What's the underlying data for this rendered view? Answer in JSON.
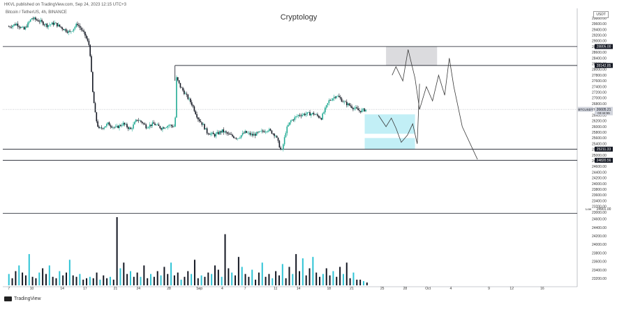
{
  "header": {
    "published_by": "HKVL published on TradingView.com, Sep 24, 2023 12:15 UTC+3",
    "symbol_line": "Bitcoin / TetherUS, 4h, BINANCE",
    "currency": "USDT"
  },
  "chart_data": {
    "type": "candlestick",
    "title": "Cryptology",
    "symbol": "BTCUSDT",
    "last_price": "26605.21",
    "last_price_sub": "03:44:55",
    "y_axis": {
      "ylim": [
        23000,
        29900
      ],
      "tick_labels": [
        "23000.00",
        "23200.00",
        "23400.00",
        "23600.00",
        "23800.00",
        "24000.00",
        "24200.00",
        "24400.00",
        "24600.00",
        "24800.00",
        "25000.00",
        "25200.00",
        "25400.00",
        "25600.00",
        "25800.00",
        "26000.00",
        "26200.00",
        "26400.00",
        "26600.00",
        "26800.00",
        "27000.00",
        "27200.00",
        "27400.00",
        "27600.00",
        "27800.00",
        "28000.00",
        "28200.00",
        "28400.00",
        "28600.00",
        "28800.00",
        "29000.00",
        "29200.00",
        "29400.00",
        "29600.00",
        "29800.00"
      ]
    },
    "x_axis": {
      "tick_labels": [
        {
          "label": "7",
          "day": 0
        },
        {
          "label": "10",
          "day": 3
        },
        {
          "label": "14",
          "day": 7
        },
        {
          "label": "17",
          "day": 10
        },
        {
          "label": "21",
          "day": 14
        },
        {
          "label": "24",
          "day": 17
        },
        {
          "label": "28",
          "day": 21
        },
        {
          "label": "Sep",
          "day": 25
        },
        {
          "label": "4",
          "day": 28
        },
        {
          "label": "7",
          "day": 31
        },
        {
          "label": "11",
          "day": 35
        },
        {
          "label": "14",
          "day": 38
        },
        {
          "label": "18",
          "day": 42
        },
        {
          "label": "21",
          "day": 45
        },
        {
          "label": "25",
          "day": 49
        },
        {
          "label": "28",
          "day": 52
        },
        {
          "label": "Oct",
          "day": 55
        },
        {
          "label": "4",
          "day": 58
        },
        {
          "label": "9",
          "day": 63
        },
        {
          "label": "12",
          "day": 66
        },
        {
          "label": "16",
          "day": 70
        }
      ]
    },
    "horizontal_levels": [
      {
        "price": 28805.0,
        "label": "28805.00"
      },
      {
        "price": 28142.85,
        "label": "28142.85"
      },
      {
        "price": 25211.33,
        "label": "25211.33"
      },
      {
        "price": 24820.56,
        "label": "24820.56"
      }
    ],
    "low_marker": {
      "label": "Low",
      "price": "24901.00"
    },
    "price_path": [
      [
        0,
        29500
      ],
      [
        1,
        29600
      ],
      [
        2,
        29400
      ],
      [
        3,
        29800
      ],
      [
        4,
        29700
      ],
      [
        5,
        29550
      ],
      [
        6,
        29620
      ],
      [
        7,
        29450
      ],
      [
        8,
        29300
      ],
      [
        9,
        29600
      ],
      [
        10,
        29200
      ],
      [
        10.6,
        28800
      ],
      [
        11,
        27200
      ],
      [
        11.4,
        26300
      ],
      [
        11.8,
        25900
      ],
      [
        12.5,
        26000
      ],
      [
        13,
        26100
      ],
      [
        14,
        25950
      ],
      [
        15,
        26100
      ],
      [
        16,
        25900
      ],
      [
        16.8,
        26250
      ],
      [
        17.5,
        26150
      ],
      [
        18,
        26000
      ],
      [
        19,
        26100
      ],
      [
        20,
        25950
      ],
      [
        21,
        26050
      ],
      [
        21.8,
        26000
      ],
      [
        22,
        27700
      ],
      [
        22.5,
        27400
      ],
      [
        23,
        27200
      ],
      [
        24,
        26800
      ],
      [
        24.8,
        26300
      ],
      [
        25.5,
        26050
      ],
      [
        26,
        25800
      ],
      [
        27,
        25700
      ],
      [
        28,
        25850
      ],
      [
        29,
        25700
      ],
      [
        30,
        25600
      ],
      [
        31,
        25800
      ],
      [
        32,
        25700
      ],
      [
        33,
        25800
      ],
      [
        34,
        25900
      ],
      [
        35,
        25700
      ],
      [
        35.8,
        25100
      ],
      [
        36.4,
        25900
      ],
      [
        37,
        26200
      ],
      [
        38,
        26400
      ],
      [
        39,
        26450
      ],
      [
        40,
        26450
      ],
      [
        41,
        26300
      ],
      [
        42,
        26900
      ],
      [
        43,
        27100
      ],
      [
        44,
        26850
      ],
      [
        45,
        26700
      ],
      [
        46,
        26550
      ],
      [
        47,
        26605
      ]
    ],
    "volume": [
      8,
      5,
      10,
      14,
      9,
      7,
      22,
      6,
      5,
      9,
      12,
      8,
      14,
      6,
      5,
      10,
      7,
      9,
      18,
      7,
      6,
      8,
      4,
      5,
      6,
      5,
      9,
      4,
      7,
      5,
      6,
      4,
      48,
      12,
      16,
      8,
      10,
      6,
      9,
      6,
      14,
      5,
      8,
      6,
      10,
      7,
      13,
      8,
      16,
      7,
      9,
      4,
      6,
      10,
      8,
      18,
      5,
      7,
      6,
      9,
      8,
      14,
      11,
      6,
      36,
      12,
      9,
      7,
      20,
      13,
      8,
      6,
      11,
      4,
      9,
      16,
      6,
      8,
      5,
      10,
      7,
      15,
      5,
      13,
      8,
      22,
      10,
      19,
      7,
      12,
      20,
      9,
      6,
      8,
      12,
      7,
      10,
      6,
      13,
      8,
      16,
      5,
      9,
      4,
      4,
      3,
      2
    ],
    "volume_ticks": [
      "23200.00",
      "23400.00",
      "23600.00",
      "23800.00",
      "24000.00",
      "24200.00",
      "24400.00",
      "24600.00"
    ],
    "zones": [
      {
        "name": "supply-zone",
        "day_from": 49.5,
        "day_to": 56.2,
        "price_from": 28142.85,
        "price_to": 28805.0,
        "color": "#d9d9dc"
      },
      {
        "name": "demand-zone-upper",
        "day_from": 46.7,
        "day_to": 53.3,
        "price_from": 25750,
        "price_to": 26430,
        "color": "#bfeef5"
      },
      {
        "name": "demand-zone-lower",
        "day_from": 46.7,
        "day_to": 53.3,
        "price_from": 25200,
        "price_to": 25600,
        "color": "#bfeef5"
      }
    ],
    "projection_path": [
      [
        48.5,
        26400
      ],
      [
        49.5,
        26000
      ],
      [
        50.2,
        26300
      ],
      [
        50.8,
        25950
      ],
      [
        51.5,
        25450
      ],
      [
        52.3,
        25700
      ],
      [
        53,
        26100
      ],
      [
        53.6,
        25400
      ],
      [
        53.9,
        27500
      ]
    ],
    "projection_path_2": [
      [
        50.3,
        27800
      ],
      [
        50.8,
        28100
      ],
      [
        51.7,
        27600
      ],
      [
        52.4,
        28700
      ],
      [
        53.3,
        27700
      ],
      [
        53.9,
        26600
      ],
      [
        54.8,
        27400
      ],
      [
        55.6,
        26900
      ],
      [
        56.4,
        27800
      ],
      [
        57.2,
        27100
      ],
      [
        57.8,
        28400
      ],
      [
        58.4,
        27400
      ],
      [
        59.5,
        26000
      ],
      [
        61.5,
        24850
      ]
    ],
    "colors": {
      "up": "#22ab94",
      "down": "#131722",
      "volume_up": "#2ec4d6",
      "volume_down": "#131722",
      "level_line": "#131722",
      "price_label_bg": "#131722",
      "last_price_bg": "#d1d4dc",
      "grid": "#f0f3fa"
    }
  }
}
